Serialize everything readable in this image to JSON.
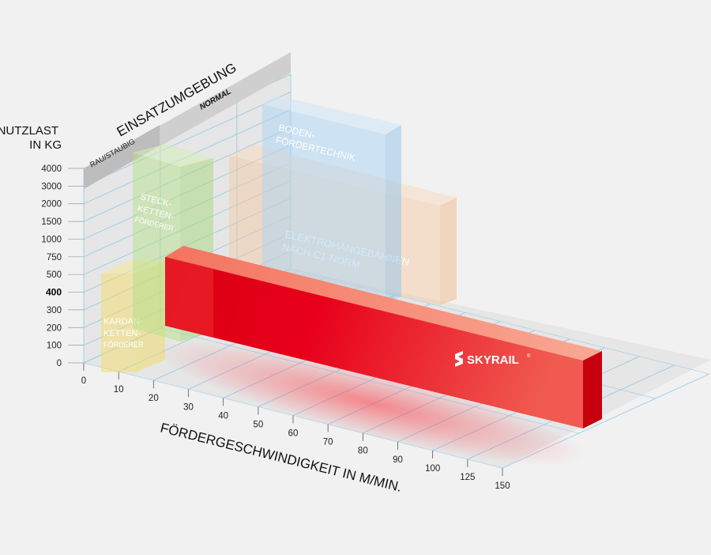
{
  "chart_data": {
    "type": "bar",
    "title": "EINSATZUMGEBUNG",
    "ylabel_lines": [
      "NUTZLAST",
      "IN KG"
    ],
    "xlabel": "FÖRDERGESCHWINDIGKEIT IN M/MIN.",
    "environments": [
      "RAU/STAUBIG",
      "NORMAL"
    ],
    "y_ticks": [
      "0",
      "100",
      "200",
      "300",
      "400",
      "500",
      "750",
      "1000",
      "1500",
      "2000",
      "3000",
      "4000"
    ],
    "y_highlight": "400",
    "x_ticks": [
      "0",
      "10",
      "20",
      "30",
      "40",
      "50",
      "60",
      "70",
      "80",
      "90",
      "100",
      "125",
      "150"
    ],
    "series": [
      {
        "label_lines": [
          "KARDAN-",
          "KETTEN-",
          "FÖRDERER"
        ],
        "color": "#f3dc6a",
        "environment": "RAU/STAUBIG",
        "x_range": [
          "10",
          "20"
        ],
        "y_range": [
          "0",
          "500"
        ]
      },
      {
        "label_lines": [
          "STECK-",
          "KETTEN-",
          "FÖRDERER"
        ],
        "color": "#b6e08a",
        "environment": "RAU/STAUBIG",
        "x_range": [
          "10",
          "20"
        ],
        "y_range": [
          "0",
          "4000"
        ]
      },
      {
        "label_lines": [
          "BODEN-",
          "FÖRDERTECHNIK"
        ],
        "color": "#a9d3f3",
        "environment": "NORMAL",
        "x_range": [
          "10",
          "30"
        ],
        "y_range": [
          "0",
          "4000"
        ]
      },
      {
        "label_lines": [
          "ELEKTROHÄNGEBAHNEN",
          "NACH C1-NORM"
        ],
        "color": "#f7c7a0",
        "environment": "NORMAL",
        "x_range": [
          "10",
          "80"
        ],
        "y_range": [
          "0",
          "2000"
        ]
      },
      {
        "label_lines": [
          "SKYRAIL"
        ],
        "color": "#e30613",
        "environment": "RAU/STAUBIG",
        "x_range": [
          "10",
          "150"
        ],
        "y_range": [
          "0",
          "400"
        ]
      }
    ],
    "legend": "none",
    "grid": true
  }
}
